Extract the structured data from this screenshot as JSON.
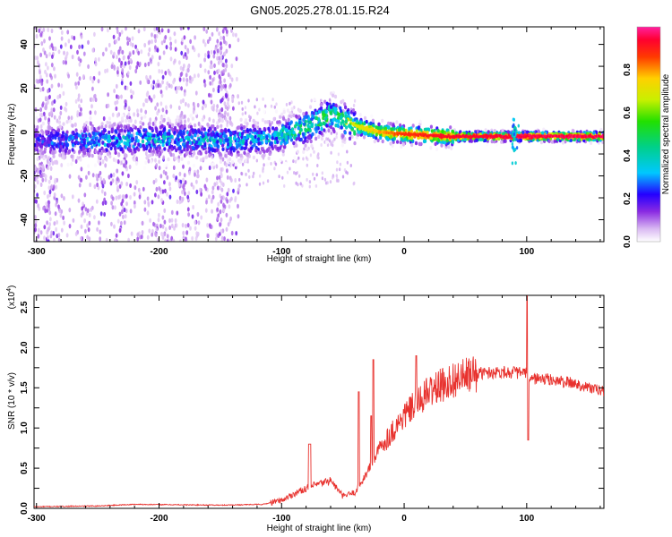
{
  "title": "GN05.2025.278.01.15.R24",
  "chart_data": [
    {
      "type": "heatmap",
      "xlabel": "Height of straight line (km)",
      "ylabel": "Frequency (Hz)",
      "xlim": [
        -302,
        163
      ],
      "ylim": [
        -50,
        48
      ],
      "xticks": [
        "-300",
        "-200",
        "-100",
        "0",
        "100"
      ],
      "yticks": [
        "40",
        "20",
        "0",
        "-20",
        "-40"
      ],
      "colorbar_label": "Normalized spectral amplitude",
      "colorbar_ticks": [
        "0.0",
        "0.2",
        "0.4",
        "0.6",
        "0.8"
      ],
      "colorbar_range": [
        0,
        1
      ],
      "ridge": [
        {
          "x": -300,
          "f": -4,
          "amp": 0.25
        },
        {
          "x": -260,
          "f": -4,
          "amp": 0.35
        },
        {
          "x": -200,
          "f": -3,
          "amp": 0.4
        },
        {
          "x": -150,
          "f": -4,
          "amp": 0.38
        },
        {
          "x": -110,
          "f": -3,
          "amp": 0.4
        },
        {
          "x": -80,
          "f": 2,
          "amp": 0.55
        },
        {
          "x": -60,
          "f": 8,
          "amp": 0.55
        },
        {
          "x": -40,
          "f": 3,
          "amp": 0.7
        },
        {
          "x": -20,
          "f": 0,
          "amp": 0.8
        },
        {
          "x": 0,
          "f": -1,
          "amp": 0.9
        },
        {
          "x": 40,
          "f": -2,
          "amp": 0.95
        },
        {
          "x": 90,
          "f": -2,
          "amp": 0.97
        },
        {
          "x": 163,
          "f": -2,
          "amp": 0.98
        }
      ]
    },
    {
      "type": "line",
      "xlabel": "Height of straight line (km)",
      "ylabel": "SNR (10 * v/v)",
      "yscale_label": "(x10",
      "yscale_exp": "4",
      "xlim": [
        -302,
        163
      ],
      "ylim": [
        0,
        2.65
      ],
      "xticks": [
        "-300",
        "-200",
        "-100",
        "0",
        "100"
      ],
      "yticks": [
        "0.0",
        "0.5",
        "1.0",
        "1.5",
        "2.0",
        "2.5"
      ],
      "color": "#e8322e",
      "series": [
        {
          "name": "SNR",
          "x": [
            -302,
            -250,
            -220,
            -150,
            -115,
            -100,
            -90,
            -80,
            -70,
            -60,
            -50,
            -40,
            -30,
            -20,
            -10,
            0,
            20,
            40,
            60,
            80,
            100,
            102,
            120,
            140,
            163
          ],
          "y": [
            0.02,
            0.03,
            0.05,
            0.04,
            0.05,
            0.1,
            0.18,
            0.25,
            0.3,
            0.35,
            0.15,
            0.2,
            0.45,
            0.75,
            0.95,
            1.15,
            1.45,
            1.6,
            1.68,
            1.7,
            1.68,
            1.62,
            1.6,
            1.55,
            1.45
          ]
        }
      ]
    }
  ]
}
